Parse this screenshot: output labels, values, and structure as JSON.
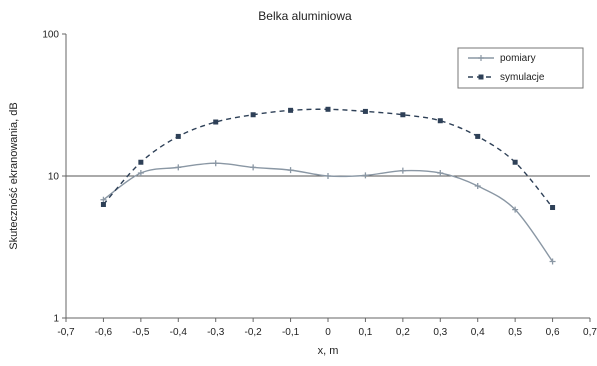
{
  "chart_data": {
    "type": "line",
    "title": "Belka aluminiowa",
    "xlabel": "x, m",
    "ylabel": "Skuteczność ekranowania, dB",
    "xlim": [
      -0.7,
      0.7
    ],
    "ylim": [
      1,
      100
    ],
    "yscale": "log",
    "xticks": [
      "-0,7",
      "-0,6",
      "-0,5",
      "-0,4",
      "-0,3",
      "-0,2",
      "-0,1",
      "0",
      "0,1",
      "0,2",
      "0,3",
      "0,4",
      "0,5",
      "0,6",
      "0,7"
    ],
    "yticks": [
      "1",
      "10",
      "100"
    ],
    "x": [
      -0.6,
      -0.5,
      -0.4,
      -0.3,
      -0.2,
      -0.1,
      0,
      0.1,
      0.2,
      0.3,
      0.4,
      0.5,
      0.6
    ],
    "series": [
      {
        "name": "pomiary",
        "values": [
          6.8,
          10.5,
          11.5,
          12.3,
          11.5,
          11.0,
          10.0,
          10.1,
          10.9,
          10.5,
          8.5,
          5.8,
          2.5
        ],
        "color": "#8a97a4",
        "marker": "plus"
      },
      {
        "name": "symulacje",
        "values": [
          6.3,
          12.5,
          19.0,
          24.0,
          27.0,
          29.0,
          29.5,
          28.5,
          27.0,
          24.5,
          19.0,
          12.5,
          6.0
        ],
        "color": "#2e4057",
        "dash": "5,4",
        "marker": "square"
      }
    ],
    "legend_position": "top-right",
    "grid": {
      "y_major_at": [
        10
      ]
    }
  }
}
